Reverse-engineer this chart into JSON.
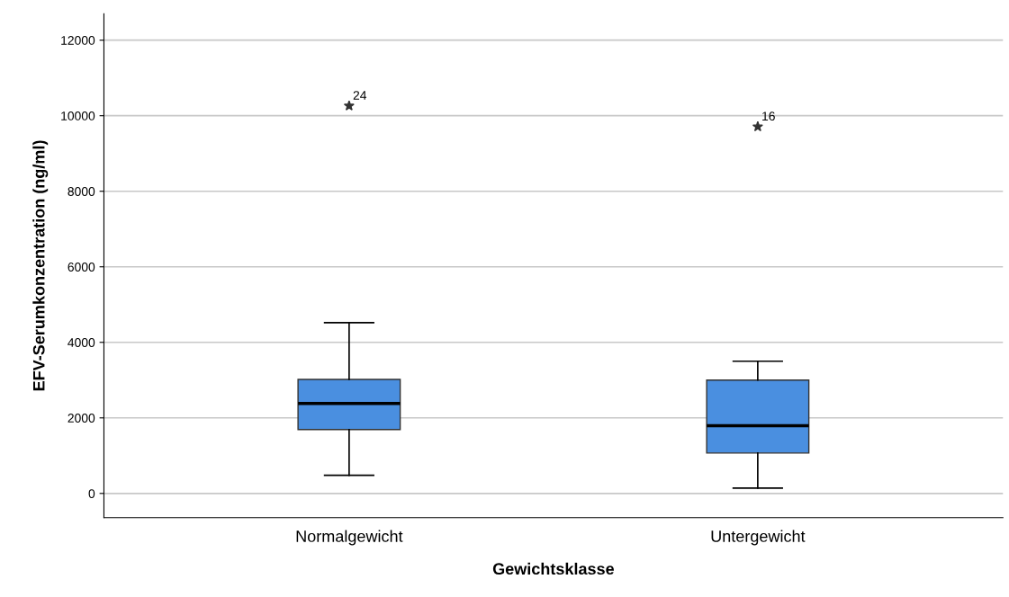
{
  "chart_data": {
    "type": "box",
    "xlabel": "Gewichtsklasse",
    "ylabel": "EFV-Serumkonzentration (ng/ml)",
    "categories": [
      "Normalgewicht",
      "Untergewicht"
    ],
    "series": [
      {
        "color": "#4a8fe0",
        "boxes": [
          {
            "low": 480,
            "q1": 1690,
            "median": 2380,
            "q3": 3020,
            "high": 4520,
            "outliers": [
              10260
            ]
          },
          {
            "low": 140,
            "q1": 1070,
            "median": 1790,
            "q3": 3000,
            "high": 3500,
            "outliers": [
              9710
            ]
          }
        ]
      }
    ],
    "marker": "star",
    "annotations": [
      "24",
      "16"
    ],
    "ylim": [
      -640,
      12700
    ],
    "yticks": [
      0,
      2000,
      4000,
      6000,
      8000,
      10000,
      12000
    ],
    "grid": "y"
  }
}
